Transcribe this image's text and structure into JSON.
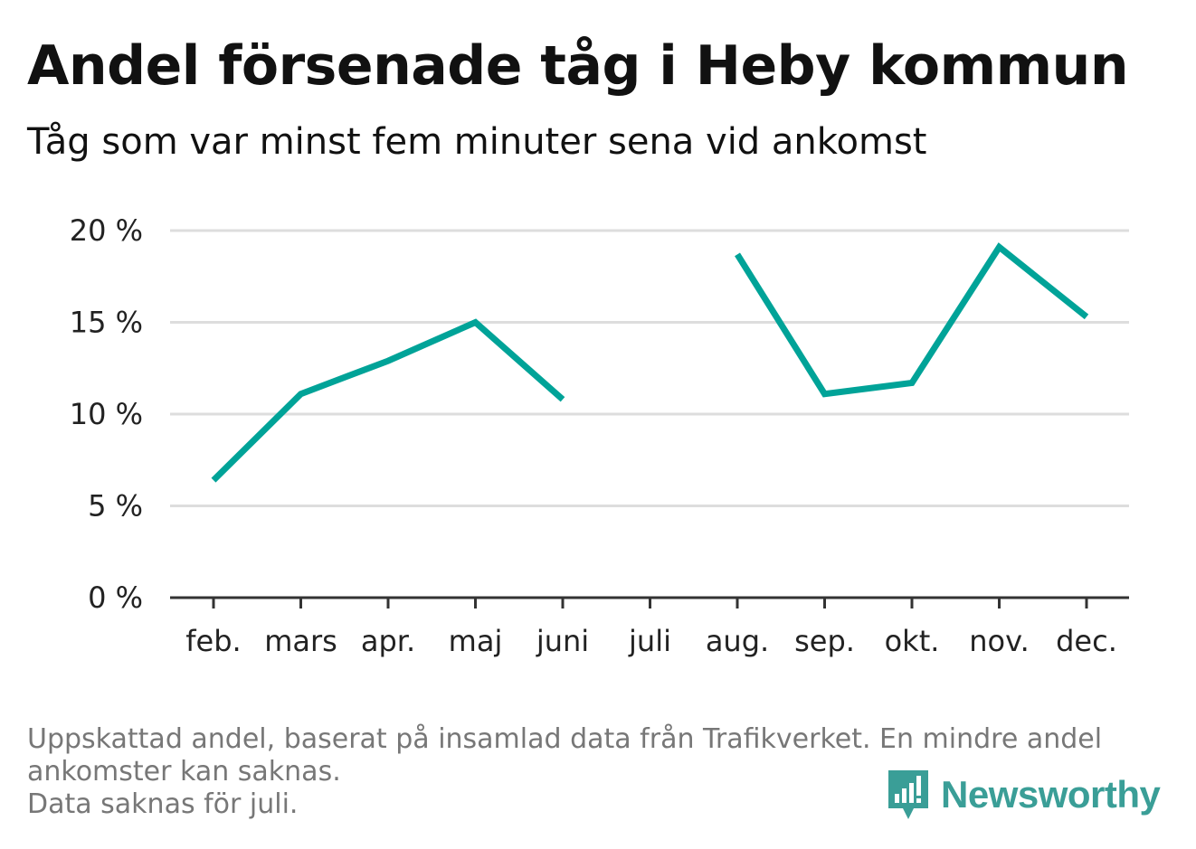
{
  "title": "Andel försenade tåg i Heby kommun",
  "subtitle": "Tåg som var minst fem minuter sena vid ankomst",
  "footnote": {
    "line1": "Uppskattad andel, baserat på insamlad data från Trafikverket. En mindre andel",
    "line2": "ankomster kan saknas.",
    "line3": "Data saknas för juli."
  },
  "brand": {
    "name": "Newsworthy",
    "icon": "newsworthy-logo-icon",
    "color": "#3a9e97"
  },
  "chart_data": {
    "type": "line",
    "categories": [
      "feb.",
      "mars",
      "apr.",
      "maj",
      "juni",
      "juli",
      "aug.",
      "sep.",
      "okt.",
      "nov.",
      "dec."
    ],
    "series": [
      {
        "values": [
          6.4,
          11.1,
          12.9,
          15.0,
          10.8,
          null,
          18.7,
          11.1,
          11.7,
          19.1,
          15.3
        ],
        "color": "#00a398"
      }
    ],
    "ylim": [
      0,
      20
    ],
    "yticks": [
      0,
      5,
      10,
      15,
      20
    ],
    "ytick_labels": [
      "0 %",
      "5 %",
      "10 %",
      "15 %",
      "20 %"
    ],
    "xlabel": "",
    "ylabel": "",
    "grid": true,
    "gap_months": [
      "juli"
    ]
  }
}
